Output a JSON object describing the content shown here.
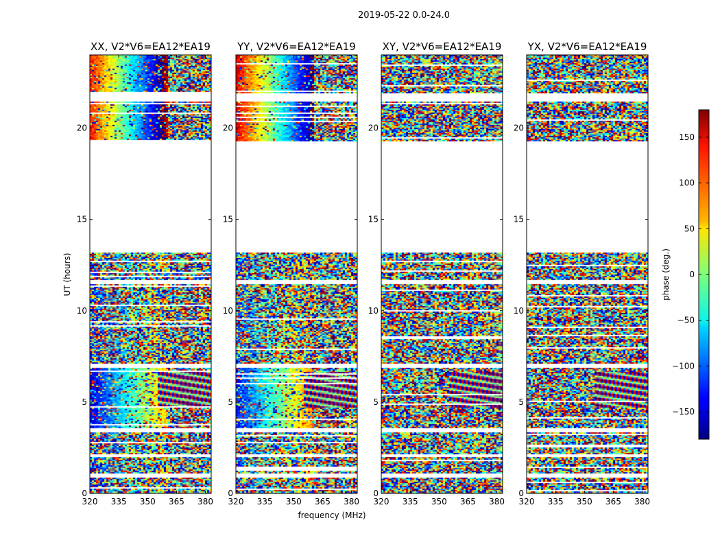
{
  "figure": {
    "suptitle": "2019-05-22 0.0-24.0"
  },
  "chart_data": {
    "type": "heatmap",
    "panels": [
      {
        "title": "XX, V2*V6=EA12*EA19",
        "pattern": "parallel_hand"
      },
      {
        "title": "YY, V2*V6=EA12*EA19",
        "pattern": "parallel_hand"
      },
      {
        "title": "XY, V2*V6=EA12*EA19",
        "pattern": "cross_hand"
      },
      {
        "title": "YX, V2*V6=EA12*EA19",
        "pattern": "cross_hand"
      }
    ],
    "xlabel": "frequency (MHz)",
    "ylabel": "UT (hours)",
    "xlim": [
      320,
      383
    ],
    "ylim": [
      0,
      24
    ],
    "xticks": [
      320,
      335,
      350,
      365,
      380
    ],
    "xtick_labels": [
      "320",
      "335",
      "350",
      "365",
      "380"
    ],
    "yticks": [
      0,
      5,
      10,
      15,
      20
    ],
    "ytick_labels": [
      "0",
      "5",
      "10",
      "15",
      "20"
    ],
    "data_blocks_hours": [
      [
        0.0,
        0.9
      ],
      [
        1.1,
        2.05
      ],
      [
        2.2,
        3.4
      ],
      [
        3.6,
        6.9
      ],
      [
        7.1,
        11.5
      ],
      [
        11.7,
        13.2
      ],
      [
        19.3,
        21.5
      ],
      [
        21.9,
        24.0
      ]
    ],
    "colorbar": {
      "label": "phase (deg.)",
      "range": [
        -180,
        180
      ],
      "ticks": [
        150,
        100,
        50,
        0,
        -50,
        -100,
        -150
      ],
      "tick_labels": [
        "150",
        "100",
        "50",
        "0",
        "−50",
        "−100",
        "−150"
      ],
      "colormap": "jet"
    }
  }
}
